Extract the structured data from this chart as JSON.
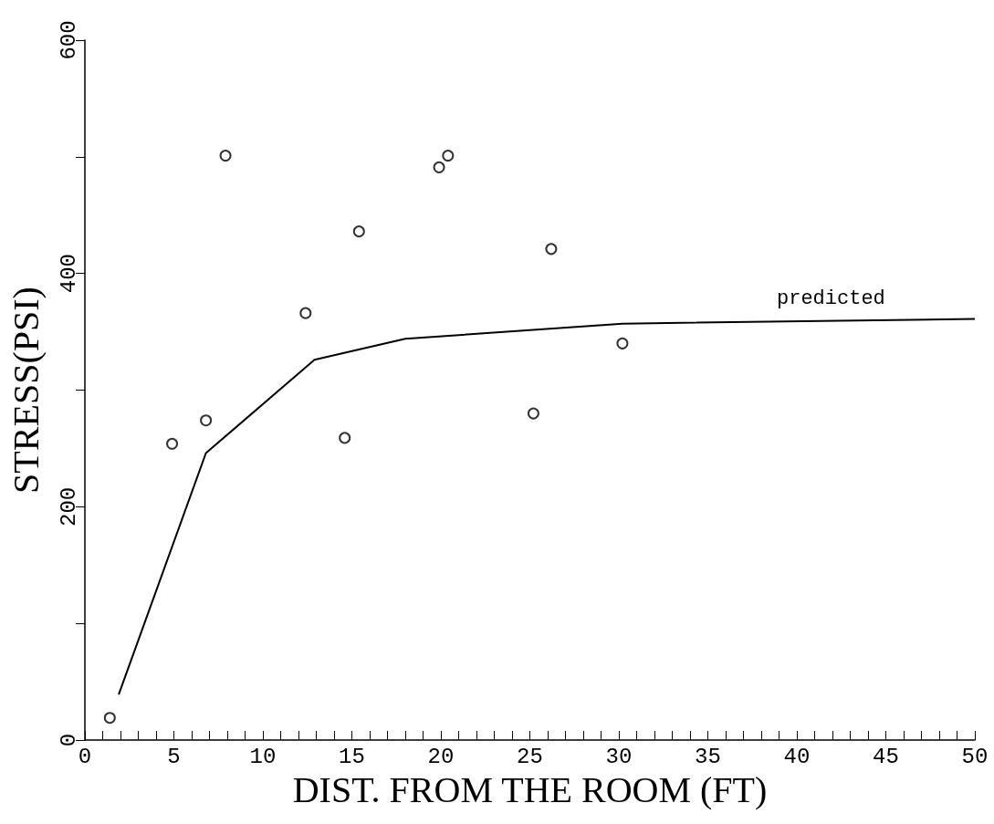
{
  "chart_data": {
    "type": "scatter",
    "xlabel": "DIST. FROM THE ROOM (FT)",
    "ylabel": "STRESS(PSI)",
    "marker": "circle",
    "grid": false,
    "xlim": [
      0,
      50
    ],
    "ylim": [
      0,
      600
    ],
    "xticks": [
      0,
      {
        "value": 1,
        "label": null
      },
      {
        "value": 2,
        "label": null
      },
      {
        "value": 3,
        "label": null
      },
      {
        "value": 4,
        "label": null
      },
      5,
      {
        "value": 6,
        "label": null
      },
      {
        "value": 7,
        "label": null
      },
      {
        "value": 8,
        "label": null
      },
      {
        "value": 9,
        "label": null
      },
      10,
      {
        "value": 11,
        "label": null
      },
      {
        "value": 12,
        "label": null
      },
      {
        "value": 13,
        "label": null
      },
      {
        "value": 14,
        "label": null
      },
      15,
      {
        "value": 16,
        "label": null
      },
      {
        "value": 17,
        "label": null
      },
      {
        "value": 18,
        "label": null
      },
      {
        "value": 19,
        "label": null
      },
      20,
      {
        "value": 21,
        "label": null
      },
      {
        "value": 22,
        "label": null
      },
      {
        "value": 23,
        "label": null
      },
      {
        "value": 24,
        "label": null
      },
      25,
      {
        "value": 26,
        "label": null
      },
      {
        "value": 27,
        "label": null
      },
      {
        "value": 28,
        "label": null
      },
      {
        "value": 29,
        "label": null
      },
      30,
      {
        "value": 31,
        "label": null
      },
      {
        "value": 32,
        "label": null
      },
      {
        "value": 33,
        "label": null
      },
      {
        "value": 34,
        "label": null
      },
      35,
      {
        "value": 36,
        "label": null
      },
      {
        "value": 37,
        "label": null
      },
      {
        "value": 38,
        "label": null
      },
      {
        "value": 39,
        "label": null
      },
      40,
      {
        "value": 41,
        "label": null
      },
      {
        "value": 42,
        "label": null
      },
      {
        "value": 43,
        "label": null
      },
      {
        "value": 44,
        "label": null
      },
      45,
      {
        "value": 46,
        "label": null
      },
      {
        "value": 47,
        "label": null
      },
      {
        "value": 48,
        "label": null
      },
      {
        "value": 49,
        "label": null
      },
      50
    ],
    "yticks": [
      0,
      {
        "value": 100,
        "label": null
      },
      200,
      {
        "value": 300,
        "label": null
      },
      400,
      {
        "value": 500,
        "label": null
      },
      600
    ],
    "series": [
      {
        "color": "#000000",
        "x": [
          1.4,
          4.9,
          6.8,
          7.9,
          12.4,
          14.6,
          15.4,
          19.9,
          20.4,
          25.2,
          26.2,
          30.2
        ],
        "values": [
          19,
          254,
          274,
          501,
          366,
          259,
          436,
          491,
          501,
          280,
          421,
          340
        ]
      },
      {
        "type": "line",
        "name": "predicted",
        "color": "#000000",
        "marker": "none",
        "line_style": "solid",
        "x": [
          1.9,
          6.8,
          12.9,
          18,
          30.2,
          50
        ],
        "values": [
          39,
          246,
          326,
          344,
          357,
          361
        ]
      }
    ]
  }
}
